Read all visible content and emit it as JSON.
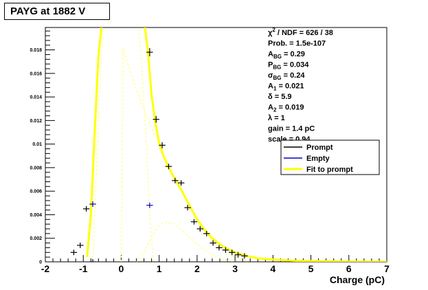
{
  "chart_data": {
    "type": "histogram",
    "title": "PAYG at 1882 V",
    "xlabel": "Charge (pC)",
    "ylabel": "",
    "xlim": [
      -2,
      7
    ],
    "ylim": [
      0,
      0.0199
    ],
    "xticks": [
      "-2",
      "-1",
      "0",
      "1",
      "2",
      "3",
      "4",
      "5",
      "6",
      "7"
    ],
    "yticks": [
      "0",
      "0.002",
      "0.004",
      "0.006",
      "0.008",
      "0.01",
      "0.012",
      "0.014",
      "0.016",
      "0.018"
    ],
    "grid": false,
    "stats": [
      {
        "main": "χ",
        "sup": "2",
        "rest": " / NDF = 626 / 38"
      },
      {
        "main": "Prob. = 1.5e-107"
      },
      {
        "main": "A",
        "sub": "BG",
        "rest": " = 0.29"
      },
      {
        "main": "P",
        "sub": "BG",
        "rest": " = 0.034"
      },
      {
        "main": "σ",
        "sub": "BG",
        "rest": " = 0.24"
      },
      {
        "main": "A",
        "sub": "1",
        "rest": " = 0.021"
      },
      {
        "main": "δ = 5.9"
      },
      {
        "main": "A",
        "sub": "2",
        "rest": " = 0.019"
      },
      {
        "main": "λ = 1"
      },
      {
        "main": "gain = 1.4 pC"
      },
      {
        "main": "scale = 0.94"
      }
    ],
    "legend": {
      "placement": "right",
      "entries": [
        {
          "label": "Prompt",
          "color": "#000000"
        },
        {
          "label": "Empty",
          "color": "#0000cc"
        },
        {
          "label": "Fit to prompt",
          "color": "#ffff00"
        }
      ]
    },
    "prompt_points": {
      "x": [
        -1.25,
        -1.08,
        -0.92,
        -0.75,
        0.75,
        0.92,
        1.08,
        1.25,
        1.42,
        1.58,
        1.75,
        1.92,
        2.08,
        2.25,
        2.42,
        2.58,
        2.75,
        2.92,
        3.08,
        3.25
      ],
      "y": [
        0.0008,
        0.0014,
        0.0045,
        0.0,
        0.0178,
        0.0121,
        0.0099,
        0.0081,
        0.0069,
        0.0067,
        0.0046,
        0.0034,
        0.0028,
        0.0024,
        0.0016,
        0.0012,
        0.001,
        0.0008,
        0.0006,
        0.0005
      ]
    },
    "empty_points": {
      "x": [
        -0.75,
        0.75
      ],
      "y": [
        0.0049,
        0.0048
      ]
    },
    "fit_curve": {
      "x": [
        -0.9,
        -0.8,
        -0.7,
        -0.6,
        -0.5,
        0.6,
        0.7,
        0.8,
        0.9,
        1.0,
        1.1,
        1.25,
        1.4,
        1.6,
        1.8,
        2.0,
        2.2,
        2.4,
        2.6,
        2.8,
        3.0,
        3.3,
        3.6,
        4.0,
        4.5,
        5.0,
        5.5,
        6.0,
        7.0
      ],
      "y": [
        0.0004,
        0.004,
        0.011,
        0.0175,
        0.0205,
        0.0205,
        0.018,
        0.0142,
        0.0118,
        0.0101,
        0.0091,
        0.008,
        0.0071,
        0.006,
        0.0048,
        0.0036,
        0.0027,
        0.002,
        0.0015,
        0.0011,
        0.0008,
        0.0005,
        0.0003,
        0.0002,
        0.0001,
        6e-05,
        4e-05,
        2e-05,
        0.0
      ]
    },
    "component_1": {
      "x": [
        0.0,
        0.05,
        0.2,
        0.4,
        0.6,
        0.8,
        1.0,
        1.2,
        1.4,
        1.6,
        1.8,
        2.0,
        2.2,
        2.4,
        2.6,
        2.8,
        3.0,
        3.3
      ],
      "y": [
        0.0,
        0.0182,
        0.0165,
        0.0146,
        0.0129,
        0.0114,
        0.0099,
        0.0085,
        0.0072,
        0.0059,
        0.0046,
        0.0035,
        0.0026,
        0.0018,
        0.0012,
        0.0007,
        0.0004,
        0.0001
      ]
    },
    "component_2": {
      "x": [
        0.4,
        0.6,
        0.8,
        1.0,
        1.2,
        1.4,
        1.6,
        1.8,
        2.0,
        2.2,
        2.4,
        2.6,
        2.8,
        3.0
      ],
      "y": [
        0.0,
        0.0008,
        0.0021,
        0.0031,
        0.0034,
        0.0032,
        0.0027,
        0.0021,
        0.0015,
        0.001,
        0.0006,
        0.0003,
        0.0001,
        0.0
      ]
    },
    "background_peak": {
      "x": [
        -0.75,
        -0.65,
        -0.55,
        -0.45,
        0.45,
        0.55,
        0.65,
        0.75,
        0.85
      ],
      "y": [
        0.0,
        0.008,
        0.016,
        0.0205,
        0.0205,
        0.016,
        0.011,
        0.004,
        0.0
      ]
    }
  }
}
